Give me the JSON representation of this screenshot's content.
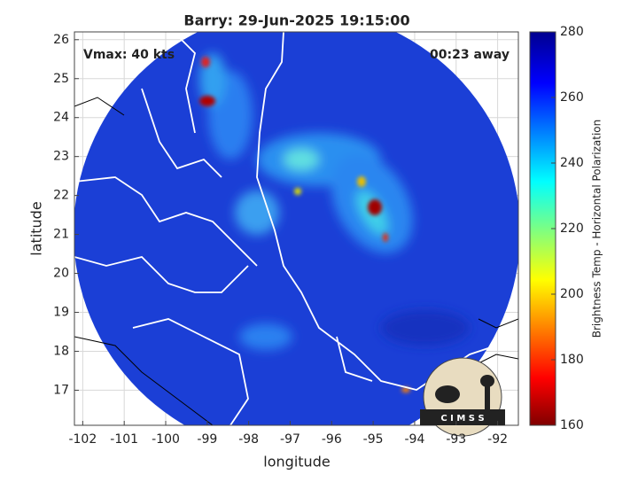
{
  "chart_data": {
    "type": "map",
    "title": "Barry: 29-Jun-2025 19:15:00",
    "annotations": [
      "Vmax: 40 kts",
      "00:23 away"
    ],
    "x_label": "longitude",
    "y_label": "latitude",
    "xlim": [
      -102.2,
      -91.5
    ],
    "xticks": [
      -102,
      -101,
      -100,
      -99,
      -98,
      -97,
      -96,
      -95,
      -94,
      -93,
      -92
    ],
    "ylim": [
      16.1,
      26.2
    ],
    "yticks": [
      17,
      18,
      19,
      20,
      21,
      22,
      23,
      24,
      25,
      26
    ],
    "grid": true,
    "colorbar": {
      "label": "Brightness Temp - Horizontal Polarization",
      "lim": [
        160,
        280
      ],
      "ticks": [
        160,
        180,
        200,
        220,
        240,
        260,
        280
      ]
    },
    "logo_text": "C I M S S"
  }
}
